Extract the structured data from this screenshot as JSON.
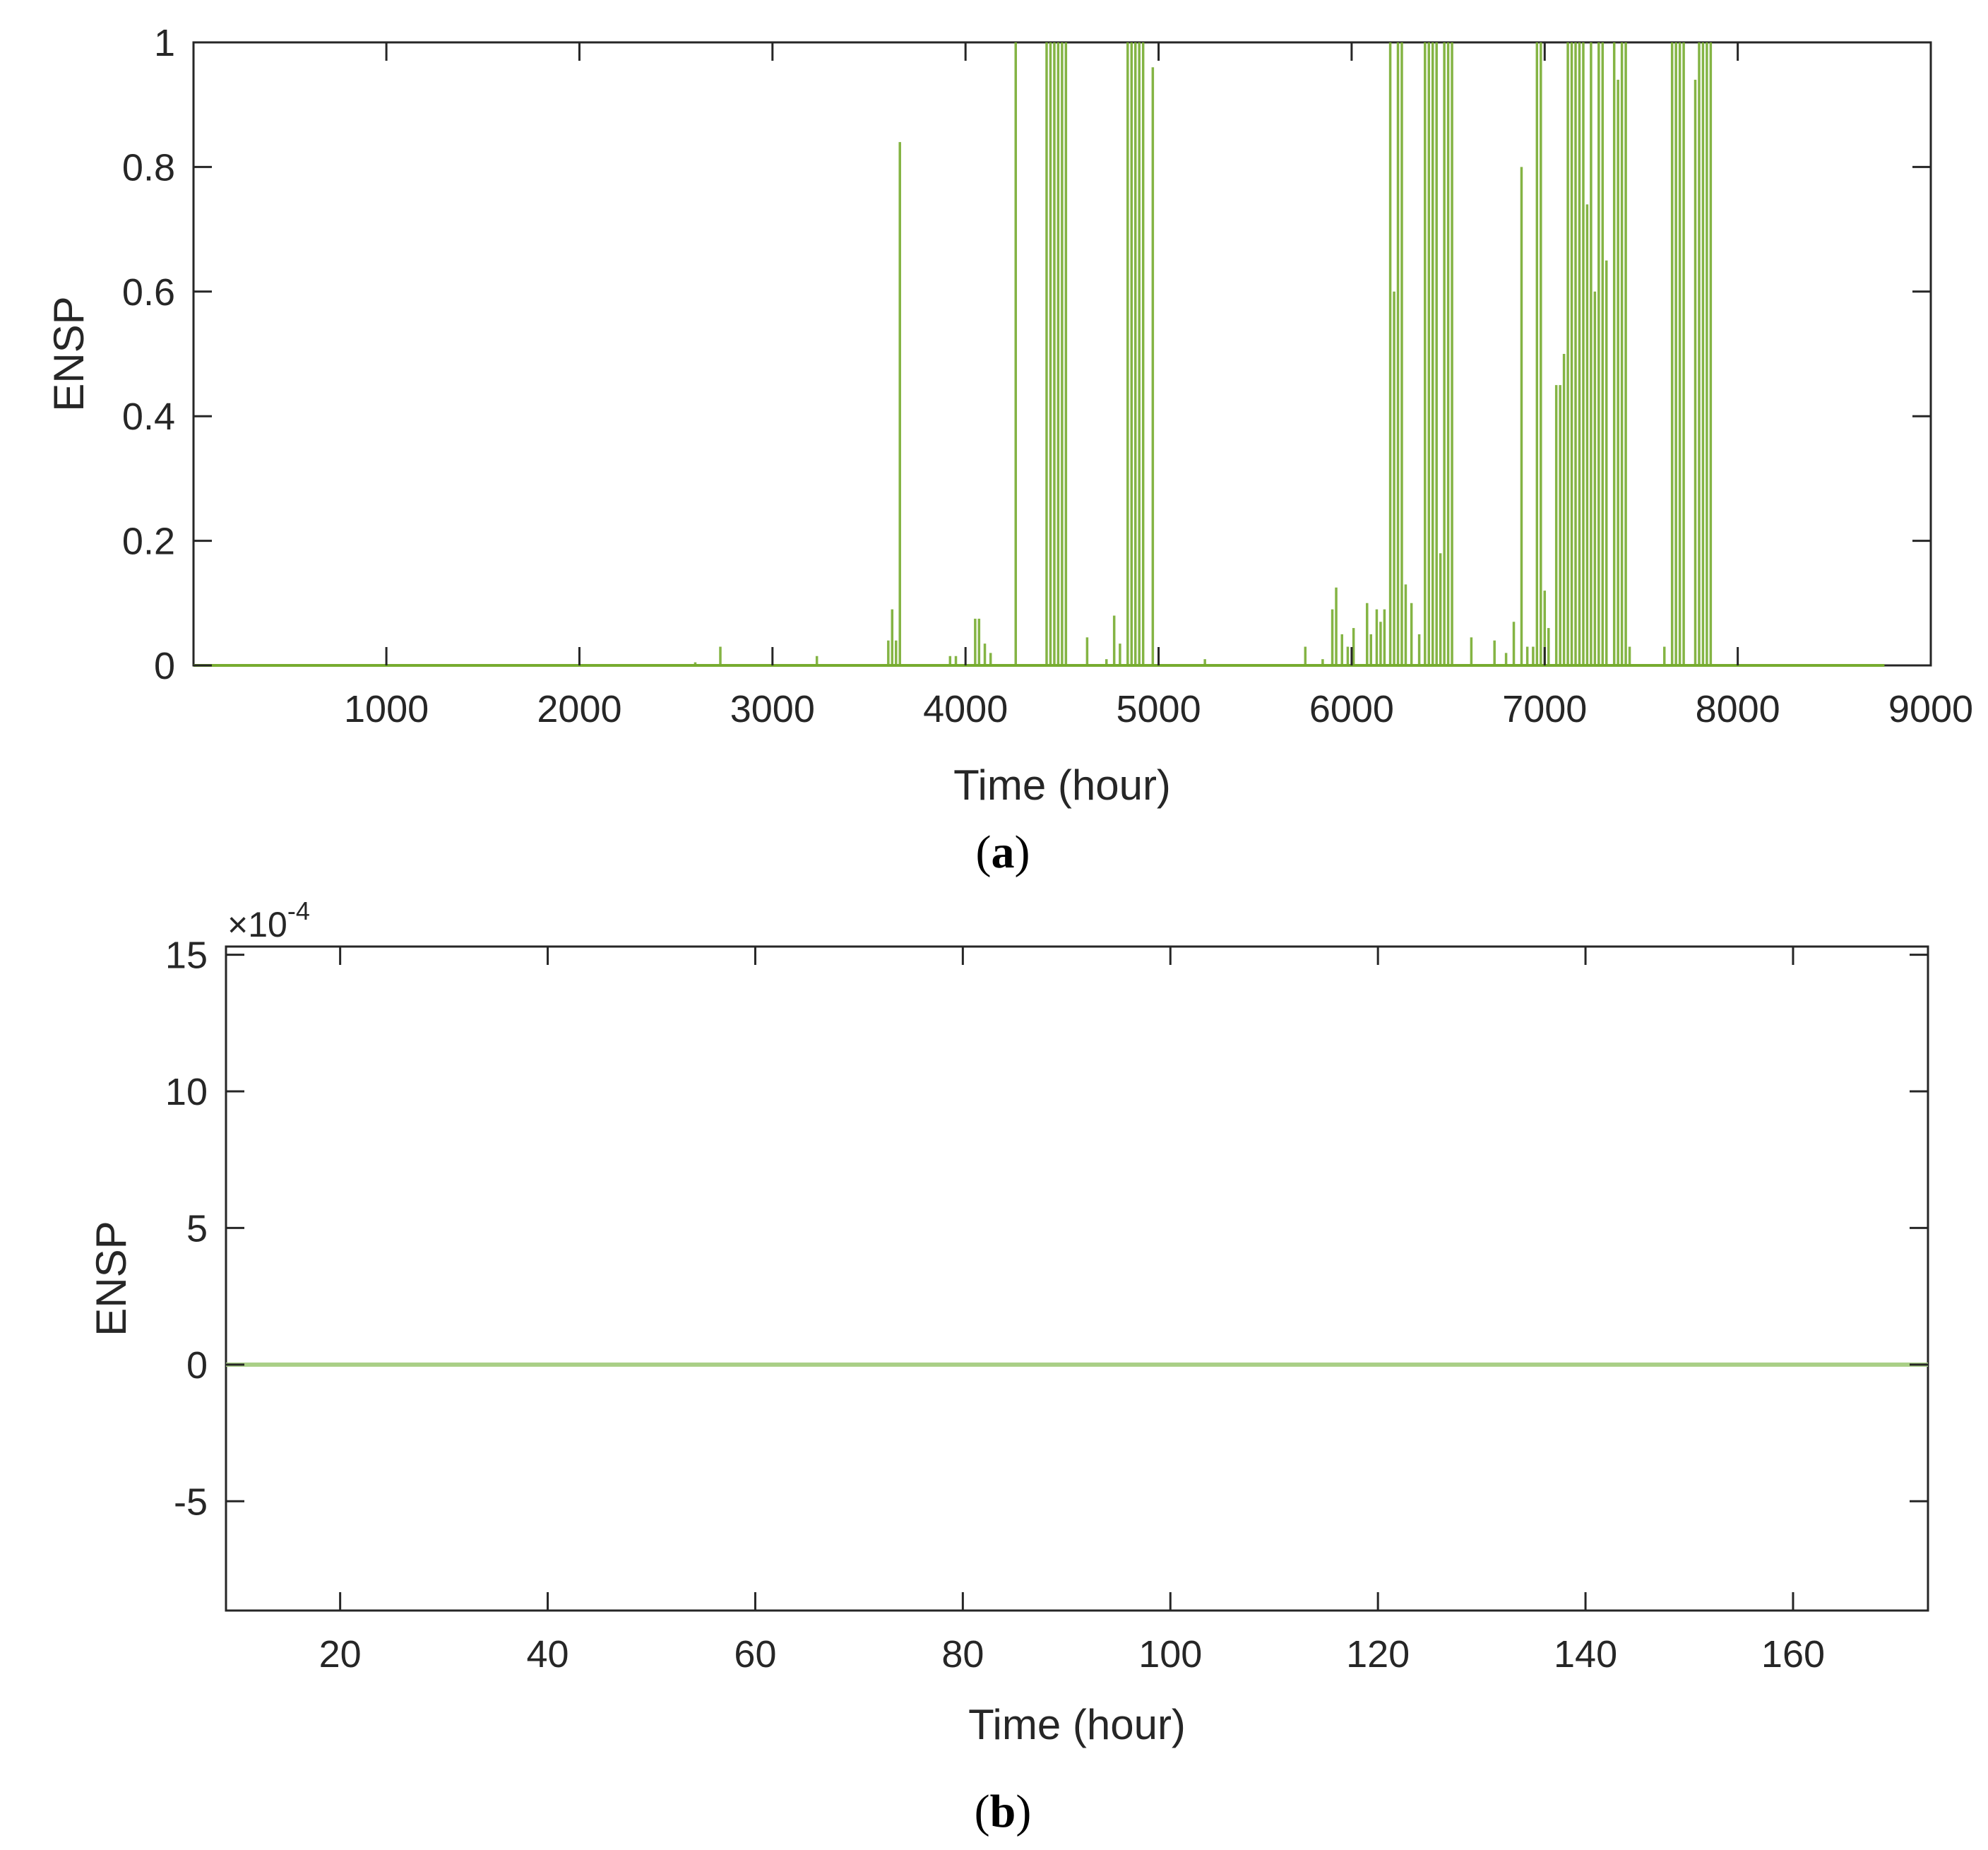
{
  "colors": {
    "series": "#77AC30",
    "axis": "#262626",
    "background": "#ffffff"
  },
  "chart_data": [
    {
      "panel_label_open": "(",
      "panel_label_letter": "a",
      "panel_label_close": ")",
      "type": "line",
      "xlabel": "Time (hour)",
      "ylabel": "ENSP",
      "xlim": [
        1,
        9000
      ],
      "ylim": [
        0,
        1
      ],
      "xticks": [
        1000,
        2000,
        3000,
        4000,
        5000,
        6000,
        7000,
        8000,
        9000
      ],
      "xtick_labels": [
        "1000",
        "2000",
        "3000",
        "4000",
        "5000",
        "6000",
        "7000",
        "8000",
        "9000"
      ],
      "yticks": [
        0,
        0.2,
        0.4,
        0.6,
        0.8,
        1
      ],
      "ytick_labels": [
        "0",
        "0.2",
        "0.4",
        "0.6",
        "0.8",
        "1"
      ],
      "grid": false,
      "series": [
        {
          "x_end": 8760,
          "spikes": [
            [
              2600,
              0.005
            ],
            [
              2730,
              0.03
            ],
            [
              3230,
              0.015
            ],
            [
              3600,
              0.04
            ],
            [
              3620,
              0.09
            ],
            [
              3640,
              0.04
            ],
            [
              3660,
              0.84
            ],
            [
              3920,
              0.015
            ],
            [
              3950,
              0.015
            ],
            [
              4050,
              0.075
            ],
            [
              4070,
              0.075
            ],
            [
              4100,
              0.035
            ],
            [
              4130,
              0.02
            ],
            [
              4260,
              1.0
            ],
            [
              4420,
              1.0
            ],
            [
              4440,
              1.0
            ],
            [
              4460,
              1.0
            ],
            [
              4480,
              1.0
            ],
            [
              4500,
              1.0
            ],
            [
              4520,
              1.0
            ],
            [
              4630,
              0.045
            ],
            [
              4730,
              0.01
            ],
            [
              4770,
              0.08
            ],
            [
              4800,
              0.035
            ],
            [
              4840,
              1.0
            ],
            [
              4860,
              1.0
            ],
            [
              4880,
              1.0
            ],
            [
              4900,
              1.0
            ],
            [
              4920,
              1.0
            ],
            [
              4970,
              0.96
            ],
            [
              5240,
              0.01
            ],
            [
              5760,
              0.03
            ],
            [
              5850,
              0.01
            ],
            [
              5900,
              0.09
            ],
            [
              5920,
              0.125
            ],
            [
              5950,
              0.05
            ],
            [
              5980,
              0.03
            ],
            [
              6010,
              0.06
            ],
            [
              6080,
              0.1
            ],
            [
              6100,
              0.05
            ],
            [
              6130,
              0.09
            ],
            [
              6150,
              0.07
            ],
            [
              6170,
              0.09
            ],
            [
              6200,
              1.0
            ],
            [
              6220,
              0.6
            ],
            [
              6240,
              1.0
            ],
            [
              6260,
              1.0
            ],
            [
              6280,
              0.13
            ],
            [
              6310,
              0.1
            ],
            [
              6350,
              0.05
            ],
            [
              6380,
              1.0
            ],
            [
              6400,
              1.0
            ],
            [
              6420,
              1.0
            ],
            [
              6440,
              1.0
            ],
            [
              6460,
              0.18
            ],
            [
              6480,
              1.0
            ],
            [
              6500,
              1.0
            ],
            [
              6520,
              1.0
            ],
            [
              6620,
              0.045
            ],
            [
              6740,
              0.04
            ],
            [
              6800,
              0.02
            ],
            [
              6840,
              0.07
            ],
            [
              6880,
              0.8
            ],
            [
              6910,
              0.03
            ],
            [
              6940,
              0.03
            ],
            [
              6960,
              1.0
            ],
            [
              6980,
              1.0
            ],
            [
              7000,
              0.12
            ],
            [
              7020,
              0.06
            ],
            [
              7060,
              0.45
            ],
            [
              7080,
              0.45
            ],
            [
              7100,
              0.5
            ],
            [
              7120,
              1.0
            ],
            [
              7140,
              1.0
            ],
            [
              7160,
              1.0
            ],
            [
              7180,
              1.0
            ],
            [
              7200,
              1.0
            ],
            [
              7220,
              0.74
            ],
            [
              7240,
              1.0
            ],
            [
              7260,
              0.6
            ],
            [
              7280,
              1.0
            ],
            [
              7300,
              1.0
            ],
            [
              7320,
              0.65
            ],
            [
              7360,
              1.0
            ],
            [
              7380,
              0.94
            ],
            [
              7400,
              1.0
            ],
            [
              7420,
              1.0
            ],
            [
              7440,
              0.03
            ],
            [
              7620,
              0.03
            ],
            [
              7660,
              1.0
            ],
            [
              7680,
              1.0
            ],
            [
              7700,
              1.0
            ],
            [
              7720,
              1.0
            ],
            [
              7780,
              0.94
            ],
            [
              7800,
              1.0
            ],
            [
              7820,
              1.0
            ],
            [
              7840,
              1.0
            ],
            [
              7860,
              1.0
            ]
          ]
        }
      ]
    },
    {
      "panel_label_open": "(",
      "panel_label_letter": "b",
      "panel_label_close": ")",
      "type": "line",
      "xlabel": "Time (hour)",
      "ylabel": "ENSP",
      "exponent_label_base": "×10",
      "exponent_label_power": "-4",
      "xlim": [
        9,
        173
      ],
      "ylim": [
        -9,
        15.3
      ],
      "xticks": [
        20,
        40,
        60,
        80,
        100,
        120,
        140,
        160
      ],
      "xtick_labels": [
        "20",
        "40",
        "60",
        "80",
        "100",
        "120",
        "140",
        "160"
      ],
      "yticks": [
        -5,
        0,
        5,
        10,
        15
      ],
      "ytick_labels": [
        "-5",
        "0",
        "5",
        "10",
        "15"
      ],
      "grid": false,
      "series": [
        {
          "x": [
            9,
            173
          ],
          "y": [
            0,
            0
          ]
        }
      ]
    }
  ]
}
